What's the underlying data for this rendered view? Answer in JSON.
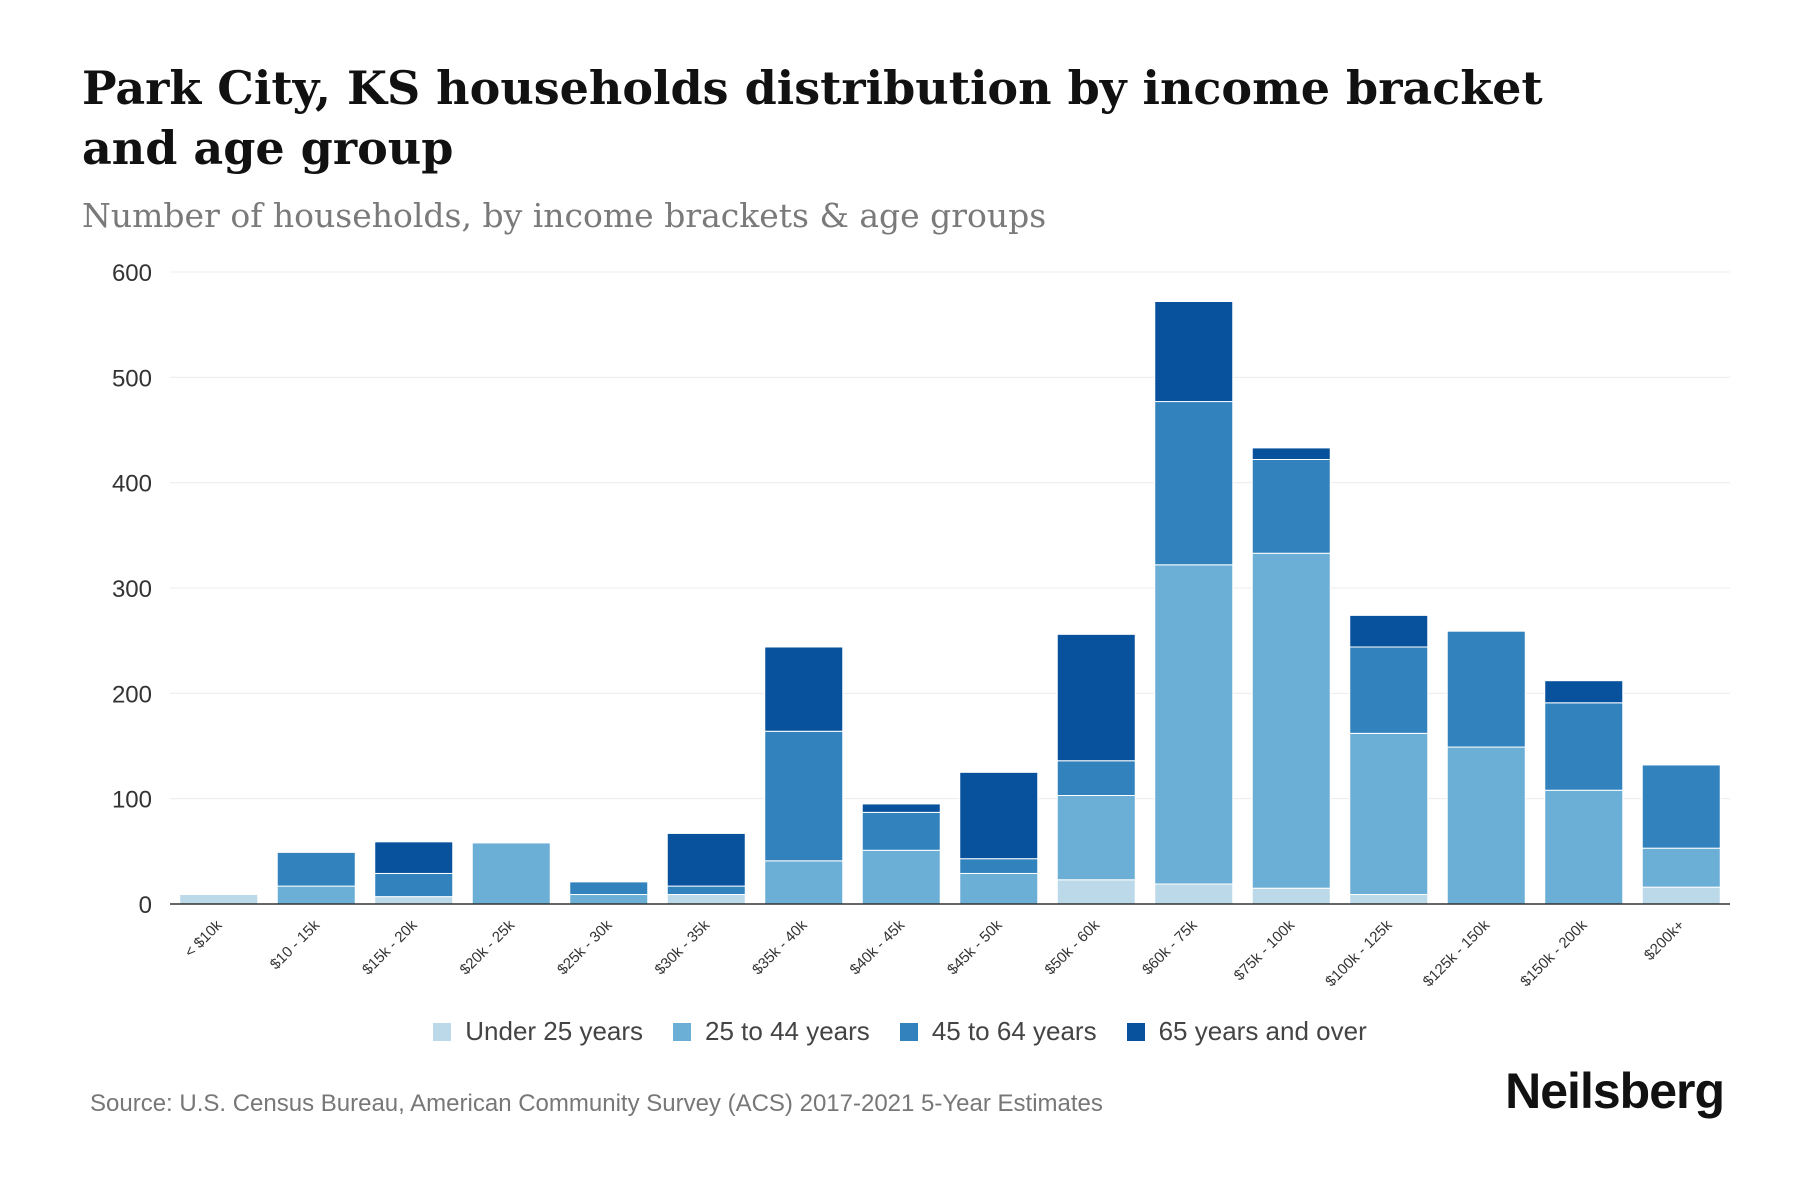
{
  "title": "Park City, KS households distribution by income bracket and age group",
  "subtitle": "Number of households, by income brackets & age groups",
  "source": "Source: U.S. Census Bureau, American Community Survey (ACS) 2017-2021 5-Year Estimates",
  "brand": "Neilsberg",
  "colors": {
    "under25": "#bcd9ea",
    "age25to44": "#6baed6",
    "age45to64": "#3182bd",
    "age65plus": "#08519c"
  },
  "chart_data": {
    "type": "bar",
    "stacked": true,
    "title": "Park City, KS households distribution by income bracket and age group",
    "subtitle": "Number of households, by income brackets & age groups",
    "xlabel": "",
    "ylabel": "",
    "ylim": [
      0,
      600
    ],
    "yticks": [
      0,
      100,
      200,
      300,
      400,
      500,
      600
    ],
    "grid": true,
    "legend": "bottom",
    "categories": [
      "< $10k",
      "$10 - 15k",
      "$15k - 20k",
      "$20k - 25k",
      "$25k - 30k",
      "$30k - 35k",
      "$35k - 40k",
      "$40k - 45k",
      "$45k - 50k",
      "$50k - 60k",
      "$60k - 75k",
      "$75k - 100k",
      "$100k - 125k",
      "$125k - 150k",
      "$150k - 200k",
      "$200k+"
    ],
    "series": [
      {
        "name": "Under 25 years",
        "color": "#bcd9ea",
        "values": [
          9,
          0,
          7,
          0,
          0,
          9,
          0,
          0,
          0,
          23,
          19,
          15,
          9,
          0,
          0,
          16
        ]
      },
      {
        "name": "25 to 44 years",
        "color": "#6baed6",
        "values": [
          0,
          17,
          0,
          58,
          9,
          0,
          41,
          51,
          29,
          80,
          303,
          318,
          153,
          149,
          108,
          37
        ]
      },
      {
        "name": "45 to 64 years",
        "color": "#3182bd",
        "values": [
          0,
          32,
          22,
          0,
          12,
          8,
          123,
          36,
          14,
          33,
          155,
          89,
          82,
          110,
          83,
          79
        ]
      },
      {
        "name": "65 years and over",
        "color": "#08519c",
        "values": [
          0,
          0,
          30,
          0,
          0,
          50,
          80,
          8,
          82,
          120,
          95,
          11,
          30,
          0,
          21,
          0
        ]
      }
    ]
  }
}
